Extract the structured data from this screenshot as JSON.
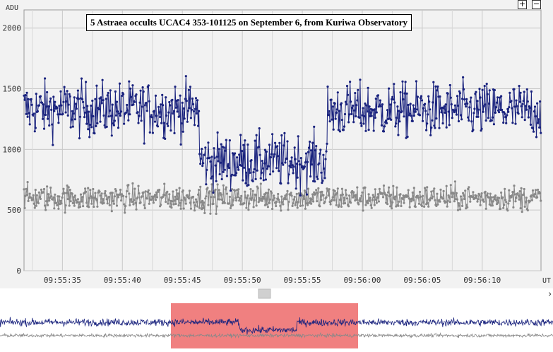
{
  "chart_data": {
    "type": "line",
    "title": "5 Astraea occults UCAC4 353-101125 on September 6, from Kuriwa Observatory",
    "ylabel": "ADU",
    "xlabel": "UT",
    "ylim": [
      0,
      2150
    ],
    "yticks": [
      0,
      500,
      1000,
      1500,
      2000
    ],
    "xticks": [
      "09:55:35",
      "09:55:40",
      "09:55:45",
      "09:55:50",
      "09:55:55",
      "09:56:00",
      "09:56:05",
      "09:56:10"
    ],
    "x_range": [
      "09:55:31.8",
      "09:56:14.9"
    ],
    "grid": true,
    "series": [
      {
        "color": "#1a237e",
        "approx_levels": [
          {
            "from": "09:55:31.8",
            "to": "09:55:46.4",
            "value": 1330
          },
          {
            "from": "09:55:46.4",
            "to": "09:55:57.1",
            "value": 900
          },
          {
            "from": "09:55:57.1",
            "to": "09:56:14.9",
            "value": 1320
          }
        ],
        "approx_noise": 160
      },
      {
        "color": "#888888",
        "approx_levels": [
          {
            "from": "09:55:31.8",
            "to": "09:56:14.9",
            "value": 600
          }
        ],
        "approx_noise": 75
      }
    ]
  },
  "ui": {
    "zoom_in_label": "+",
    "zoom_out_label": "−",
    "scroll_right_glyph": "›",
    "overview_highlight_color": "#f08080"
  }
}
